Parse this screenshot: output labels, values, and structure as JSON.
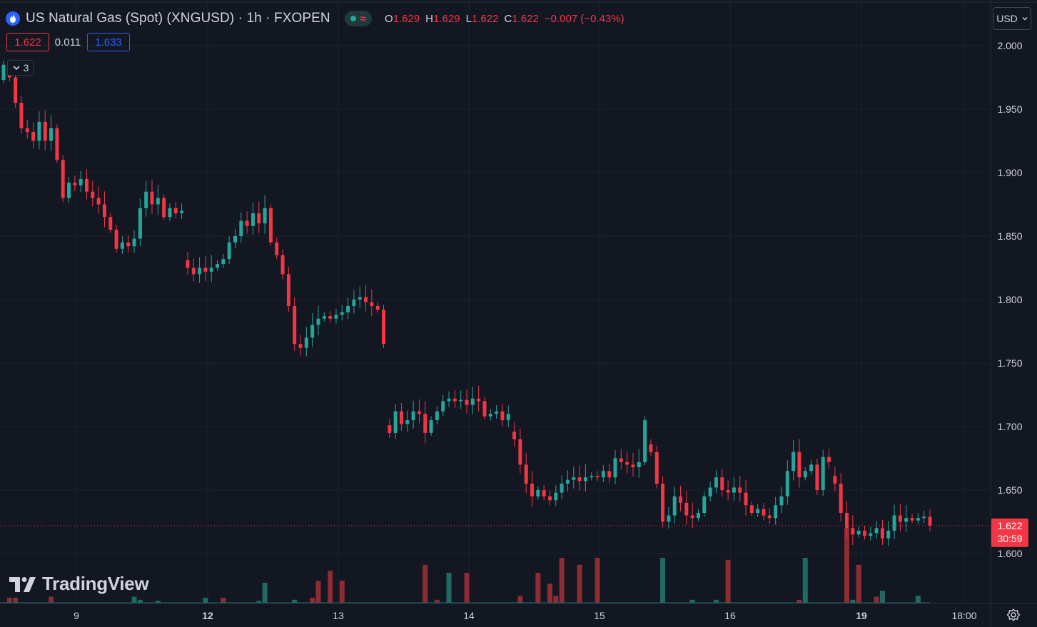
{
  "header": {
    "title": "US Natural Gas (Spot) (XNGUSD) · 1h · FXOPEN",
    "status_wave": "≈",
    "ohlc": {
      "o_label": "O",
      "o": "1.629",
      "h_label": "H",
      "h": "1.629",
      "l_label": "L",
      "l": "1.622",
      "c_label": "C",
      "c": "1.622",
      "change": "−0.007 (−0.43%)"
    }
  },
  "quote": {
    "sell": "1.622",
    "spread": "0.011",
    "buy": "1.633"
  },
  "indicators_toggle": {
    "count": "3"
  },
  "currency": "USD",
  "logo_text": "TradingView",
  "last_price": {
    "price": "1.622",
    "countdown": "30:59",
    "value": 1.622
  },
  "colors": {
    "up": "#26a69a",
    "down": "#f23645",
    "background": "#131722",
    "grid": "#1e222d",
    "text": "#d1d4dc",
    "blue": "#2962ff"
  },
  "chart_data": {
    "type": "candlestick",
    "y_axis": {
      "range": [
        1.555,
        2.02
      ],
      "ticks": [
        "2.000",
        "1.950",
        "1.900",
        "1.850",
        "1.800",
        "1.750",
        "1.700",
        "1.650",
        "1.600"
      ]
    },
    "x_axis": {
      "ticks": [
        {
          "label": "9",
          "bold": false
        },
        {
          "label": "12",
          "bold": true
        },
        {
          "label": "13",
          "bold": false
        },
        {
          "label": "14",
          "bold": false
        },
        {
          "label": "15",
          "bold": false
        },
        {
          "label": "16",
          "bold": false
        },
        {
          "label": "19",
          "bold": true
        },
        {
          "label": "18:00",
          "bold": false
        }
      ]
    },
    "grid": true,
    "candle_path": [
      1.985,
      1.975,
      1.955,
      1.935,
      1.932,
      1.925,
      1.94,
      1.925,
      1.935,
      1.91,
      1.88,
      1.892,
      1.89,
      1.895,
      1.885,
      1.88,
      1.875,
      1.865,
      1.855,
      1.84,
      1.845,
      1.842,
      1.848,
      1.872,
      1.885,
      1.875,
      1.88,
      1.865,
      1.872,
      1.868,
      1.87,
      1.825,
      1.82,
      1.825,
      1.822,
      1.825,
      1.828,
      1.832,
      1.845,
      1.85,
      1.862,
      1.858,
      1.868,
      1.86,
      1.872,
      1.845,
      1.835,
      1.82,
      1.795,
      1.765,
      1.762,
      1.77,
      1.78,
      1.785,
      1.787,
      1.785,
      1.788,
      1.79,
      1.795,
      1.8,
      1.802,
      1.798,
      1.795,
      1.792,
      1.765,
      1.695,
      1.712,
      1.702,
      1.705,
      1.712,
      1.71,
      1.695,
      1.705,
      1.712,
      1.72,
      1.722,
      1.72,
      1.721,
      1.717,
      1.722,
      1.72,
      1.708,
      1.71,
      1.712,
      1.705,
      1.71,
      1.69,
      1.67,
      1.655,
      1.645,
      1.65,
      1.645,
      1.642,
      1.648,
      1.655,
      1.658,
      1.66,
      1.657,
      1.66,
      1.661,
      1.66,
      1.665,
      1.66,
      1.675,
      1.672,
      1.67,
      1.668,
      1.672,
      1.705,
      1.68,
      1.655,
      1.625,
      1.63,
      1.645,
      1.64,
      1.63,
      1.628,
      1.632,
      1.645,
      1.652,
      1.66,
      1.65,
      1.648,
      1.652,
      1.648,
      1.638,
      1.632,
      1.635,
      1.63,
      1.628,
      1.638,
      1.645,
      1.665,
      1.68,
      1.66,
      1.665,
      1.67,
      1.65,
      1.676,
      1.672,
      1.655,
      1.632,
      1.62,
      1.615,
      1.618,
      1.614,
      1.616,
      1.62,
      1.612,
      1.618,
      1.63,
      1.625,
      1.628,
      1.626,
      1.628,
      1.629,
      1.622
    ],
    "volume_bars": [
      {
        "i": 1,
        "v": 0.05,
        "c": "down"
      },
      {
        "i": 2,
        "v": 0.05,
        "c": "down"
      },
      {
        "i": 8,
        "v": 0.06,
        "c": "down"
      },
      {
        "i": 22,
        "v": 0.06,
        "c": "up"
      },
      {
        "i": 23,
        "v": 0.03,
        "c": "up"
      },
      {
        "i": 26,
        "v": 0.02,
        "c": "up"
      },
      {
        "i": 34,
        "v": 0.05,
        "c": "up"
      },
      {
        "i": 37,
        "v": 0.05,
        "c": "down"
      },
      {
        "i": 43,
        "v": 0.02,
        "c": "up"
      },
      {
        "i": 44,
        "v": 0.2,
        "c": "up"
      },
      {
        "i": 49,
        "v": 0.03,
        "c": "up"
      },
      {
        "i": 52,
        "v": 0.05,
        "c": "down"
      },
      {
        "i": 53,
        "v": 0.22,
        "c": "down"
      },
      {
        "i": 55,
        "v": 0.32,
        "c": "down"
      },
      {
        "i": 57,
        "v": 0.22,
        "c": "down"
      },
      {
        "i": 71,
        "v": 0.38,
        "c": "down"
      },
      {
        "i": 73,
        "v": 0.03,
        "c": "down"
      },
      {
        "i": 75,
        "v": 0.3,
        "c": "up"
      },
      {
        "i": 78,
        "v": 0.3,
        "c": "down"
      },
      {
        "i": 87,
        "v": 0.07,
        "c": "down"
      },
      {
        "i": 90,
        "v": 0.3,
        "c": "down"
      },
      {
        "i": 92,
        "v": 0.19,
        "c": "down"
      },
      {
        "i": 93,
        "v": 0.07,
        "c": "down"
      },
      {
        "i": 94,
        "v": 0.45,
        "c": "down"
      },
      {
        "i": 97,
        "v": 0.38,
        "c": "down"
      },
      {
        "i": 100,
        "v": 0.45,
        "c": "down"
      },
      {
        "i": 111,
        "v": 0.45,
        "c": "up"
      },
      {
        "i": 116,
        "v": 0.03,
        "c": "up"
      },
      {
        "i": 120,
        "v": 0.03,
        "c": "up"
      },
      {
        "i": 122,
        "v": 0.43,
        "c": "down"
      },
      {
        "i": 134,
        "v": 0.03,
        "c": "down"
      },
      {
        "i": 135,
        "v": 0.45,
        "c": "up"
      },
      {
        "i": 142,
        "v": 0.75,
        "c": "down"
      },
      {
        "i": 143,
        "v": 0.03,
        "c": "up"
      },
      {
        "i": 144,
        "v": 0.38,
        "c": "down"
      },
      {
        "i": 147,
        "v": 0.06,
        "c": "down"
      },
      {
        "i": 148,
        "v": 0.12,
        "c": "up"
      },
      {
        "i": 154,
        "v": 0.07,
        "c": "up"
      }
    ]
  }
}
